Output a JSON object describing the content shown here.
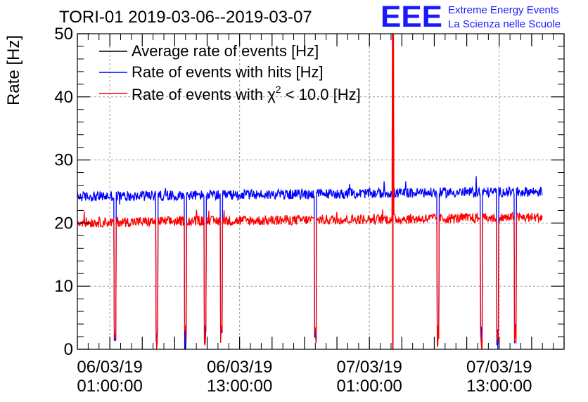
{
  "title": "TORI-01 2019-03-06--2019-03-07",
  "logo": {
    "mark": "EEE",
    "line1": "Extreme Energy Events",
    "line2": "La Scienza nelle Scuole",
    "color": "#0000ff"
  },
  "chart_data": {
    "type": "line",
    "title": "TORI-01 2019-03-06--2019-03-07",
    "ylabel": "Rate [Hz]",
    "xlabel": "",
    "ylim": [
      0,
      50
    ],
    "yticks": [
      0,
      10,
      20,
      30,
      40,
      50
    ],
    "xlim": [
      "2019-03-05 22:00:00",
      "2019-03-07 19:00:00"
    ],
    "xticks": [
      {
        "date": "06/03/19",
        "time": "01:00:00"
      },
      {
        "date": "06/03/19",
        "time": "13:00:00"
      },
      {
        "date": "07/03/19",
        "time": "01:00:00"
      },
      {
        "date": "07/03/19",
        "time": "13:00:00"
      }
    ],
    "x_range": [
      "2019-03-05 22:00:00",
      "2019-03-07 17:00:00"
    ],
    "grid": true,
    "legend_position": "top-left",
    "series": [
      {
        "name": "Average rate of events [Hz]",
        "color": "#000000",
        "mean": 24.4,
        "noise": 0.8,
        "trend": 0.6,
        "visible_in_plot": false
      },
      {
        "name": "Rate of events with hits [Hz]",
        "color": "#0000ff",
        "mean": 24.2,
        "noise": 0.8,
        "trend": 0.8
      },
      {
        "name": "Rate of events with χ² < 10.0 [Hz]",
        "legend_main": "Rate of events with ",
        "legend_chi": "χ",
        "legend_sup": "2",
        "legend_rest": " < 10.0 [Hz]",
        "color": "#ff0000",
        "mean": 20.1,
        "noise": 0.8,
        "trend": 0.8
      }
    ],
    "dips": [
      {
        "time": "2019-03-06 01:30:00",
        "value": 0
      },
      {
        "time": "2019-03-06 05:20:00",
        "value": 0
      },
      {
        "time": "2019-03-06 08:00:00",
        "value": 0
      },
      {
        "time": "2019-03-06 09:50:00",
        "value": 0
      },
      {
        "time": "2019-03-06 11:20:00",
        "value": 0
      },
      {
        "time": "2019-03-06 20:00:00",
        "value": 0
      },
      {
        "time": "2019-03-07 07:20:00",
        "value": 0
      },
      {
        "time": "2019-03-07 11:20:00",
        "value": 0
      },
      {
        "time": "2019-03-07 12:50:00",
        "value": 0
      },
      {
        "time": "2019-03-07 14:30:00",
        "value": 0
      }
    ],
    "spike": {
      "time": "2019-03-07 03:10:00",
      "value": 50
    }
  }
}
